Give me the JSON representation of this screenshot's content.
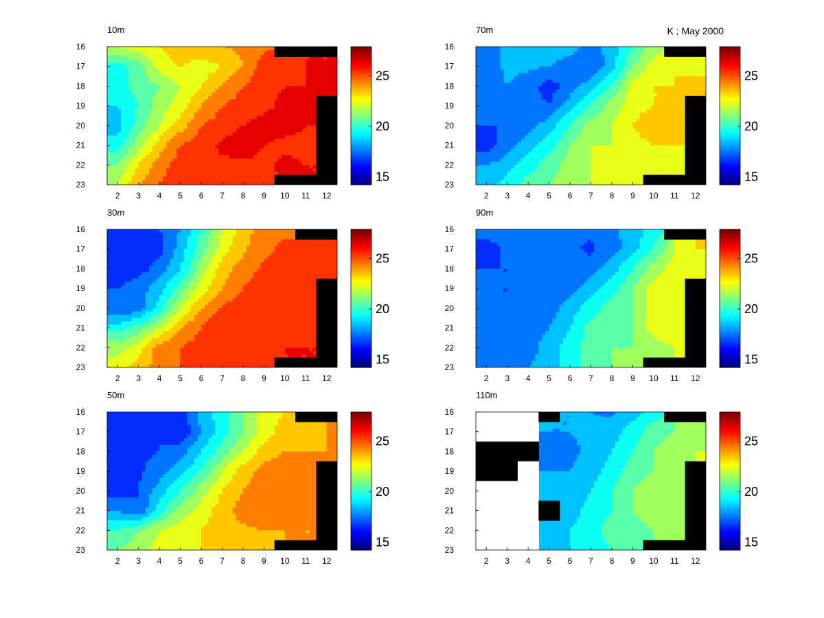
{
  "figure_annotation": "K ; May 2000",
  "chart_data": [
    {
      "type": "heatmap",
      "title": "10m",
      "x": [
        2,
        3,
        4,
        5,
        6,
        7,
        8,
        9,
        10,
        11,
        12
      ],
      "y": [
        16,
        17,
        18,
        19,
        20,
        21,
        22,
        23
      ],
      "x_ticks": [
        "2",
        "3",
        "4",
        "5",
        "6",
        "7",
        "8",
        "9",
        "10",
        "11",
        "12"
      ],
      "y_ticks": [
        "16",
        "17",
        "18",
        "19",
        "20",
        "21",
        "22",
        "23"
      ],
      "values": [
        [
          22.0,
          22.5,
          23.0,
          23.5,
          23.8,
          24.0,
          24.2,
          24.8,
          null,
          null,
          null
        ],
        [
          19.5,
          20.5,
          22.5,
          23.0,
          22.5,
          23.0,
          24.0,
          25.5,
          25.8,
          26.0,
          26.0
        ],
        [
          19.5,
          20.5,
          21.0,
          22.0,
          23.0,
          24.0,
          25.0,
          25.8,
          26.0,
          26.0,
          26.0
        ],
        [
          19.0,
          20.0,
          21.5,
          22.5,
          24.0,
          25.0,
          25.5,
          25.8,
          26.2,
          26.5,
          null
        ],
        [
          18.5,
          20.5,
          22.0,
          23.5,
          25.0,
          25.5,
          26.0,
          26.3,
          26.3,
          26.0,
          null
        ],
        [
          19.5,
          21.5,
          23.5,
          25.0,
          25.5,
          26.2,
          26.5,
          26.0,
          25.8,
          25.8,
          null
        ],
        [
          21.0,
          23.0,
          24.5,
          25.5,
          26.0,
          25.8,
          25.8,
          25.8,
          26.2,
          26.0,
          null
        ],
        [
          22.0,
          24.0,
          25.0,
          25.8,
          25.8,
          25.8,
          25.8,
          25.8,
          null,
          null,
          null
        ]
      ],
      "colorbar": {
        "ticks": [
          15,
          20,
          25
        ],
        "range": [
          14.2,
          27.9
        ],
        "colormap": "jet"
      },
      "contour_step": 1,
      "mask_color": "#000000"
    },
    {
      "type": "heatmap",
      "title": "30m",
      "x": [
        2,
        3,
        4,
        5,
        6,
        7,
        8,
        9,
        10,
        11,
        12
      ],
      "y": [
        16,
        17,
        18,
        19,
        20,
        21,
        22,
        23
      ],
      "x_ticks": [
        "2",
        "3",
        "4",
        "5",
        "6",
        "7",
        "8",
        "9",
        "10",
        "11",
        "12"
      ],
      "y_ticks": [
        "16",
        "17",
        "18",
        "19",
        "20",
        "21",
        "22",
        "23"
      ],
      "values": [
        [
          16.5,
          16.5,
          17.0,
          18.0,
          20.0,
          22.0,
          23.5,
          24.5,
          24.8,
          null,
          null
        ],
        [
          16.5,
          16.0,
          16.5,
          18.5,
          20.5,
          22.5,
          23.8,
          24.8,
          25.2,
          25.0,
          25.2
        ],
        [
          16.5,
          16.5,
          17.5,
          19.0,
          21.5,
          23.5,
          24.5,
          25.2,
          25.5,
          25.6,
          25.6
        ],
        [
          17.0,
          17.5,
          18.5,
          20.5,
          22.5,
          24.0,
          25.0,
          25.5,
          25.6,
          25.8,
          null
        ],
        [
          17.0,
          17.5,
          19.5,
          22.0,
          24.0,
          25.2,
          25.5,
          26.0,
          25.6,
          25.8,
          null
        ],
        [
          19.5,
          20.5,
          22.0,
          24.0,
          25.0,
          26.0,
          25.6,
          25.6,
          25.6,
          25.6,
          null
        ],
        [
          21.5,
          22.5,
          24.5,
          25.0,
          25.5,
          25.5,
          25.6,
          25.8,
          26.0,
          26.0,
          null
        ],
        [
          22.5,
          23.5,
          24.5,
          25.0,
          25.5,
          25.6,
          25.6,
          25.6,
          null,
          null,
          null
        ]
      ],
      "colorbar": {
        "ticks": [
          15,
          20,
          25
        ],
        "range": [
          14.2,
          27.9
        ],
        "colormap": "jet"
      },
      "contour_step": 1,
      "mask_color": "#000000"
    },
    {
      "type": "heatmap",
      "title": "50m",
      "x": [
        2,
        3,
        4,
        5,
        6,
        7,
        8,
        9,
        10,
        11,
        12
      ],
      "y": [
        16,
        17,
        18,
        19,
        20,
        21,
        22,
        23
      ],
      "x_ticks": [
        "2",
        "3",
        "4",
        "5",
        "6",
        "7",
        "8",
        "9",
        "10",
        "11",
        "12"
      ],
      "y_ticks": [
        "16",
        "17",
        "18",
        "19",
        "20",
        "21",
        "22",
        "23"
      ],
      "values": [
        [
          16.5,
          16.5,
          17.0,
          16.5,
          18.5,
          19.5,
          21.0,
          22.5,
          23.0,
          null,
          null
        ],
        [
          16.0,
          16.5,
          17.0,
          16.0,
          18.0,
          19.5,
          21.0,
          22.5,
          23.5,
          23.8,
          24.0
        ],
        [
          16.5,
          16.8,
          17.0,
          17.5,
          19.0,
          20.5,
          22.0,
          23.5,
          24.0,
          24.0,
          24.0
        ],
        [
          16.8,
          16.8,
          17.5,
          18.5,
          20.0,
          22.0,
          23.5,
          24.5,
          24.5,
          24.2,
          null
        ],
        [
          16.5,
          17.0,
          18.5,
          20.0,
          21.5,
          23.0,
          24.0,
          24.5,
          24.8,
          24.5,
          null
        ],
        [
          18.0,
          17.0,
          19.5,
          21.5,
          22.5,
          23.5,
          24.5,
          24.8,
          24.8,
          24.5,
          null
        ],
        [
          20.0,
          21.0,
          22.0,
          22.5,
          23.0,
          23.5,
          23.8,
          24.0,
          24.0,
          24.0,
          null
        ],
        [
          21.0,
          21.5,
          22.5,
          23.0,
          23.0,
          23.0,
          23.2,
          23.0,
          null,
          null,
          null
        ]
      ],
      "colorbar": {
        "ticks": [
          15,
          20,
          25
        ],
        "range": [
          14.2,
          27.9
        ],
        "colormap": "jet"
      },
      "contour_step": 1,
      "mask_color": "#000000"
    },
    {
      "type": "heatmap",
      "title": "70m",
      "x": [
        2,
        3,
        4,
        5,
        6,
        7,
        8,
        9,
        10,
        11,
        12
      ],
      "y": [
        16,
        17,
        18,
        19,
        20,
        21,
        22,
        23
      ],
      "x_ticks": [
        "2",
        "3",
        "4",
        "5",
        "6",
        "7",
        "8",
        "9",
        "10",
        "11",
        "12"
      ],
      "y_ticks": [
        "16",
        "17",
        "18",
        "19",
        "20",
        "21",
        "22",
        "23"
      ],
      "values": [
        [
          18.0,
          18.0,
          18.2,
          18.5,
          18.5,
          17.5,
          18.5,
          20.0,
          21.5,
          null,
          null
        ],
        [
          17.5,
          18.2,
          18.2,
          18.0,
          17.5,
          17.0,
          18.5,
          21.0,
          22.5,
          23.0,
          22.5
        ],
        [
          17.5,
          18.0,
          17.5,
          16.5,
          17.5,
          18.5,
          20.0,
          22.5,
          23.0,
          23.0,
          23.5
        ],
        [
          17.5,
          17.0,
          17.5,
          17.0,
          18.5,
          20.0,
          21.5,
          22.5,
          23.0,
          23.0,
          null
        ],
        [
          17.0,
          17.0,
          17.5,
          18.5,
          20.0,
          21.5,
          22.0,
          23.0,
          24.0,
          23.0,
          null
        ],
        [
          16.5,
          17.5,
          18.5,
          19.5,
          21.0,
          22.0,
          22.0,
          22.5,
          23.0,
          23.0,
          null
        ],
        [
          18.0,
          18.5,
          19.5,
          20.5,
          21.5,
          22.0,
          22.0,
          22.5,
          22.5,
          22.5,
          null
        ],
        [
          18.5,
          19.5,
          20.5,
          21.0,
          21.5,
          22.0,
          22.0,
          22.0,
          null,
          null,
          null
        ]
      ],
      "colorbar": {
        "ticks": [
          15,
          20,
          25
        ],
        "range": [
          14.2,
          27.9
        ],
        "colormap": "jet"
      },
      "contour_step": 1,
      "mask_color": "#000000"
    },
    {
      "type": "heatmap",
      "title": "90m",
      "x": [
        2,
        3,
        4,
        5,
        6,
        7,
        8,
        9,
        10,
        11,
        12
      ],
      "y": [
        16,
        17,
        18,
        19,
        20,
        21,
        22,
        23
      ],
      "x_ticks": [
        "2",
        "3",
        "4",
        "5",
        "6",
        "7",
        "8",
        "9",
        "10",
        "11",
        "12"
      ],
      "y_ticks": [
        "16",
        "17",
        "18",
        "19",
        "20",
        "21",
        "22",
        "23"
      ],
      "values": [
        [
          17.5,
          17.5,
          17.5,
          17.5,
          17.5,
          17.2,
          17.8,
          18.5,
          19.5,
          null,
          null
        ],
        [
          16.5,
          17.2,
          17.2,
          17.2,
          17.2,
          16.8,
          17.5,
          18.5,
          20.0,
          22.0,
          23.0
        ],
        [
          17.0,
          17.0,
          17.2,
          17.2,
          17.2,
          17.5,
          18.5,
          20.0,
          21.5,
          22.5,
          22.5
        ],
        [
          17.0,
          17.0,
          17.2,
          17.2,
          17.5,
          18.5,
          19.5,
          21.0,
          22.5,
          22.8,
          null
        ],
        [
          17.0,
          17.0,
          17.2,
          17.5,
          18.5,
          19.5,
          20.5,
          21.0,
          22.5,
          22.8,
          null
        ],
        [
          17.0,
          17.2,
          17.5,
          18.0,
          19.0,
          20.5,
          20.5,
          21.0,
          22.5,
          22.8,
          null
        ],
        [
          17.5,
          17.5,
          17.5,
          18.5,
          19.5,
          20.5,
          21.0,
          21.0,
          21.5,
          22.0,
          null
        ],
        [
          17.5,
          17.5,
          18.0,
          18.5,
          19.5,
          20.5,
          21.0,
          21.0,
          null,
          null,
          null
        ]
      ],
      "colorbar": {
        "ticks": [
          15,
          20,
          25
        ],
        "range": [
          14.2,
          27.9
        ],
        "colormap": "jet"
      },
      "contour_step": 1,
      "mask_color": "#000000"
    },
    {
      "type": "heatmap",
      "title": "110m",
      "x": [
        2,
        3,
        4,
        5,
        6,
        7,
        8,
        9,
        10,
        11,
        12
      ],
      "y": [
        16,
        17,
        18,
        19,
        20,
        21,
        22,
        23
      ],
      "x_ticks": [
        "2",
        "3",
        "4",
        "5",
        "6",
        "7",
        "8",
        "9",
        "10",
        "11",
        "12"
      ],
      "y_ticks": [
        "16",
        "17",
        "18",
        "19",
        "20",
        "21",
        "22",
        "23"
      ],
      "values": [
        [
          null,
          null,
          null,
          null,
          18.0,
          18.0,
          17.8,
          18.5,
          19.5,
          null,
          null
        ],
        [
          null,
          null,
          null,
          18.0,
          18.0,
          18.2,
          18.5,
          19.5,
          20.5,
          21.0,
          21.5
        ],
        [
          null,
          null,
          null,
          17.5,
          17.8,
          18.2,
          19.0,
          20.0,
          21.0,
          21.5,
          22.0
        ],
        [
          null,
          null,
          null,
          18.0,
          18.0,
          18.5,
          19.5,
          20.5,
          21.0,
          21.5,
          null
        ],
        [
          null,
          null,
          null,
          18.0,
          18.2,
          19.0,
          20.0,
          21.0,
          21.5,
          21.5,
          null
        ],
        [
          null,
          null,
          null,
          null,
          18.5,
          19.5,
          20.0,
          21.0,
          21.5,
          21.5,
          null
        ],
        [
          null,
          null,
          null,
          18.5,
          19.0,
          19.5,
          20.5,
          20.5,
          21.0,
          21.0,
          null
        ],
        [
          null,
          null,
          null,
          18.5,
          19.0,
          19.5,
          20.0,
          20.5,
          null,
          null,
          null
        ]
      ],
      "colorbar": {
        "ticks": [
          15,
          20,
          25
        ],
        "range": [
          14.2,
          27.9
        ],
        "colormap": "jet"
      },
      "contour_step": 1,
      "mask_color": "#000000"
    }
  ]
}
